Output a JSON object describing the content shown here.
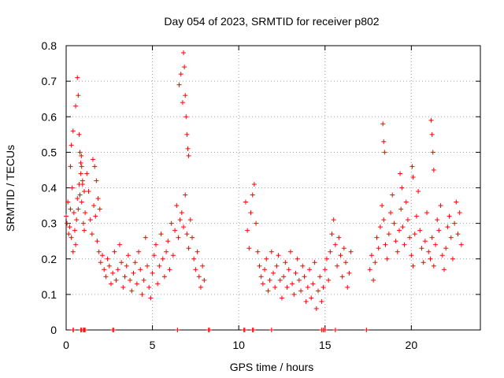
{
  "chart_data": {
    "type": "scatter",
    "title": "Day 054 of 2023, SRMTID for receiver p802",
    "xlabel": "GPS time / hours",
    "ylabel": "SRMTID / TECUs",
    "xlim": [
      0,
      24
    ],
    "ylim": [
      0,
      0.8
    ],
    "xticks": [
      0,
      5,
      10,
      15,
      20
    ],
    "yticks": [
      0,
      0.1,
      0.2,
      0.3,
      0.4,
      0.5,
      0.6,
      0.7,
      0.8
    ],
    "xtick_labels": [
      "0",
      "5",
      "10",
      "15",
      "20"
    ],
    "ytick_labels": [
      "0",
      "0.1",
      "0.2",
      "0.3",
      "0.4",
      "0.5",
      "0.6",
      "0.7",
      "0.8"
    ],
    "grid": true,
    "marker": "+",
    "series_color": "#ff0000",
    "series": [
      {
        "name": "SRMTID",
        "x": [
          0.0,
          0.05,
          0.1,
          0.15,
          0.2,
          0.25,
          0.3,
          0.35,
          0.4,
          0.45,
          0.5,
          0.55,
          0.6,
          0.65,
          0.7,
          0.75,
          0.8,
          0.85,
          0.9,
          0.95,
          1.0,
          1.05,
          1.1,
          1.2,
          1.3,
          1.4,
          1.5,
          1.6,
          1.7,
          1.8,
          1.9,
          2.0,
          2.1,
          2.2,
          2.3,
          2.4,
          2.5,
          2.6,
          2.7,
          2.8,
          2.9,
          3.0,
          3.1,
          3.2,
          3.3,
          3.4,
          3.5,
          3.6,
          3.7,
          3.8,
          3.9,
          4.0,
          4.1,
          4.2,
          4.3,
          4.4,
          4.5,
          4.6,
          4.7,
          4.8,
          4.9,
          5.0,
          5.1,
          5.2,
          5.3,
          5.4,
          5.5,
          5.6,
          5.7,
          5.8,
          5.9,
          6.0,
          6.1,
          6.2,
          6.3,
          6.4,
          6.5,
          6.6,
          6.7,
          6.8,
          6.9,
          7.0,
          7.1,
          7.2,
          7.3,
          7.4,
          7.5,
          7.6,
          7.7,
          7.8,
          7.9,
          8.0,
          0.25,
          0.3,
          0.4,
          0.55,
          0.65,
          0.7,
          0.75,
          0.8,
          0.85,
          0.88,
          0.9,
          0.95,
          1.05,
          1.55,
          1.65,
          1.75,
          1.85,
          1.95,
          6.55,
          6.65,
          6.75,
          6.8,
          6.85,
          6.9,
          6.95,
          7.0,
          7.05,
          7.1,
          10.4,
          10.5,
          10.6,
          10.7,
          10.8,
          10.9,
          11.0,
          11.1,
          11.2,
          11.3,
          11.4,
          11.5,
          11.6,
          11.7,
          11.8,
          11.9,
          12.0,
          12.1,
          12.2,
          12.3,
          12.4,
          12.5,
          12.6,
          12.7,
          12.8,
          12.9,
          13.0,
          13.1,
          13.2,
          13.3,
          13.4,
          13.5,
          13.6,
          13.7,
          13.8,
          13.9,
          14.0,
          14.1,
          14.2,
          14.3,
          14.4,
          14.5,
          14.6,
          14.7,
          14.8,
          14.9,
          15.0,
          15.1,
          15.2,
          15.3,
          15.4,
          15.5,
          15.6,
          15.7,
          15.8,
          15.9,
          16.0,
          16.1,
          16.2,
          16.3,
          16.4,
          16.5,
          17.6,
          17.7,
          17.8,
          17.9,
          18.0,
          18.1,
          18.2,
          18.3,
          18.4,
          18.5,
          18.6,
          18.7,
          18.8,
          18.9,
          19.0,
          19.1,
          19.2,
          19.3,
          19.4,
          19.5,
          19.6,
          19.7,
          19.8,
          19.9,
          20.0,
          20.1,
          20.2,
          20.3,
          20.4,
          20.5,
          20.6,
          20.7,
          20.8,
          20.9,
          21.0,
          21.1,
          21.2,
          21.3,
          21.4,
          21.5,
          21.6,
          21.7,
          21.8,
          21.9,
          22.0,
          22.1,
          22.2,
          22.3,
          22.4,
          22.5,
          22.6,
          22.7,
          22.8,
          22.9,
          18.35,
          18.4,
          18.45,
          19.35,
          19.45,
          20.05,
          20.1,
          21.15,
          21.2,
          21.25,
          21.3,
          0.4,
          0.42,
          0.85,
          0.9,
          1.0,
          1.05,
          1.1,
          2.7,
          2.75,
          6.45,
          8.25,
          8.3,
          10.3,
          10.35,
          10.8,
          10.85,
          11.9,
          14.8,
          14.9,
          15.0,
          15.6,
          17.4
        ],
        "y": [
          0.32,
          0.3,
          0.36,
          0.27,
          0.29,
          0.34,
          0.26,
          0.4,
          0.22,
          0.33,
          0.28,
          0.24,
          0.31,
          0.37,
          0.34,
          0.41,
          0.38,
          0.47,
          0.36,
          0.42,
          0.3,
          0.28,
          0.33,
          0.44,
          0.39,
          0.31,
          0.27,
          0.35,
          0.32,
          0.25,
          0.22,
          0.19,
          0.21,
          0.17,
          0.15,
          0.2,
          0.18,
          0.13,
          0.16,
          0.22,
          0.14,
          0.17,
          0.24,
          0.19,
          0.12,
          0.15,
          0.18,
          0.21,
          0.14,
          0.11,
          0.16,
          0.19,
          0.13,
          0.22,
          0.17,
          0.1,
          0.14,
          0.26,
          0.18,
          0.12,
          0.09,
          0.16,
          0.21,
          0.24,
          0.13,
          0.18,
          0.27,
          0.2,
          0.15,
          0.22,
          0.25,
          0.17,
          0.3,
          0.21,
          0.28,
          0.35,
          0.26,
          0.31,
          0.33,
          0.29,
          0.38,
          0.27,
          0.23,
          0.31,
          0.26,
          0.2,
          0.17,
          0.22,
          0.15,
          0.12,
          0.18,
          0.14,
          0.46,
          0.52,
          0.56,
          0.63,
          0.71,
          0.66,
          0.55,
          0.5,
          0.44,
          0.49,
          0.46,
          0.41,
          0.39,
          0.48,
          0.46,
          0.42,
          0.37,
          0.34,
          0.69,
          0.72,
          0.64,
          0.78,
          0.74,
          0.66,
          0.6,
          0.55,
          0.51,
          0.49,
          0.36,
          0.28,
          0.23,
          0.33,
          0.38,
          0.41,
          0.3,
          0.22,
          0.18,
          0.15,
          0.13,
          0.17,
          0.2,
          0.11,
          0.14,
          0.22,
          0.16,
          0.12,
          0.18,
          0.21,
          0.14,
          0.09,
          0.15,
          0.19,
          0.12,
          0.17,
          0.22,
          0.13,
          0.1,
          0.16,
          0.2,
          0.14,
          0.11,
          0.18,
          0.15,
          0.08,
          0.12,
          0.17,
          0.09,
          0.13,
          0.19,
          0.06,
          0.11,
          0.15,
          0.08,
          0.12,
          0.17,
          0.2,
          0.14,
          0.22,
          0.27,
          0.31,
          0.24,
          0.18,
          0.26,
          0.21,
          0.15,
          0.23,
          0.19,
          0.12,
          0.16,
          0.22,
          0.17,
          0.21,
          0.14,
          0.19,
          0.26,
          0.23,
          0.29,
          0.35,
          0.31,
          0.24,
          0.2,
          0.27,
          0.33,
          0.38,
          0.3,
          0.25,
          0.22,
          0.28,
          0.34,
          0.29,
          0.24,
          0.36,
          0.31,
          0.26,
          0.21,
          0.18,
          0.27,
          0.32,
          0.39,
          0.28,
          0.23,
          0.19,
          0.25,
          0.33,
          0.22,
          0.2,
          0.26,
          0.18,
          0.24,
          0.31,
          0.28,
          0.35,
          0.21,
          0.17,
          0.23,
          0.29,
          0.32,
          0.26,
          0.2,
          0.3,
          0.36,
          0.27,
          0.33,
          0.24,
          0.58,
          0.53,
          0.5,
          0.44,
          0.4,
          0.46,
          0.43,
          0.59,
          0.55,
          0.5,
          0.45,
          0,
          0,
          0,
          0,
          0,
          0,
          0,
          0,
          0,
          0,
          0,
          0,
          0,
          0,
          0,
          0,
          0,
          0,
          0,
          0,
          0,
          0
        ]
      }
    ]
  }
}
